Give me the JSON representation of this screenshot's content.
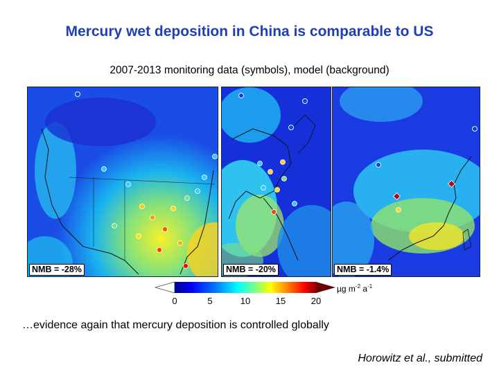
{
  "slide": {
    "title": "Mercury wet deposition in China is comparable to US",
    "subtitle": "2007-2013 monitoring data (symbols), model (background)",
    "evidence": "…evidence again that mercury deposition is controlled globally",
    "citation": "Horowitz et al., submitted"
  },
  "panels": [
    {
      "region": "US",
      "nmb": "NMB = -28%"
    },
    {
      "region": "East Asia",
      "nmb": "NMB = -20%"
    },
    {
      "region": "China",
      "nmb": "NMB = -1.4%"
    }
  ],
  "colorbar": {
    "ticks": [
      "0",
      "5",
      "10",
      "15",
      "20"
    ],
    "unit_base": "µg m",
    "unit_exp1": "-2",
    "unit_mid": " a",
    "unit_exp2": "-1",
    "colors": [
      "#00008f",
      "#0000ff",
      "#007fff",
      "#00ffff",
      "#7fff7f",
      "#ffff00",
      "#ff7f00",
      "#ff0000",
      "#8f0000"
    ]
  }
}
